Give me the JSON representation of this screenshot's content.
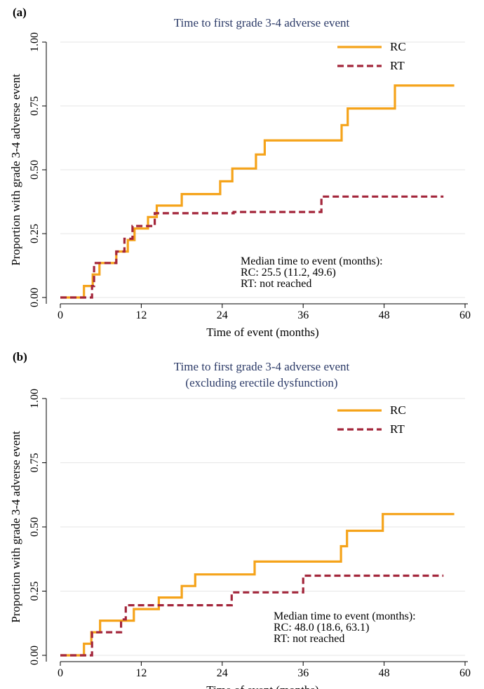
{
  "chart_data": [
    {
      "type": "line",
      "panel_label": "(a)",
      "title_lines": [
        "Time to first grade 3-4 adverse event"
      ],
      "xlabel": "Time of event (months)",
      "ylabel": "Proportion with grade 3-4 adverse event",
      "xlim": [
        0,
        60
      ],
      "ylim": [
        0,
        1
      ],
      "x_ticks": [
        0,
        12,
        24,
        36,
        48,
        60
      ],
      "y_ticks": [
        "0.00",
        "0.25",
        "0.50",
        "0.75",
        "1.00"
      ],
      "grid": true,
      "legend_position": "top-right",
      "series": [
        {
          "name": "RC",
          "color": "#f5a31a",
          "style": "solid",
          "x": [
            0,
            3.5,
            3.5,
            4.8,
            4.8,
            5.8,
            5.8,
            8.3,
            8.3,
            10.0,
            10.0,
            11.0,
            11.0,
            13.0,
            13.0,
            14.3,
            14.3,
            18.0,
            18.0,
            23.7,
            23.7,
            25.5,
            25.5,
            29.0,
            29.0,
            30.3,
            30.3,
            41.7,
            41.7,
            42.6,
            42.6,
            49.6,
            49.6,
            58.4
          ],
          "y": [
            0,
            0,
            0.045,
            0.045,
            0.09,
            0.09,
            0.135,
            0.135,
            0.18,
            0.18,
            0.225,
            0.225,
            0.27,
            0.27,
            0.315,
            0.315,
            0.36,
            0.36,
            0.405,
            0.405,
            0.455,
            0.455,
            0.505,
            0.505,
            0.56,
            0.56,
            0.615,
            0.615,
            0.675,
            0.675,
            0.74,
            0.74,
            0.83,
            0.83
          ]
        },
        {
          "name": "RT",
          "color": "#a3263b",
          "style": "dashed",
          "x": [
            0,
            4.7,
            4.7,
            5.0,
            5.0,
            8.3,
            8.3,
            9.5,
            9.5,
            10.7,
            10.7,
            14.0,
            14.0,
            25.7,
            25.7,
            38.7,
            38.7,
            56.8
          ],
          "y": [
            0,
            0,
            0.045,
            0.045,
            0.135,
            0.135,
            0.18,
            0.18,
            0.23,
            0.23,
            0.28,
            0.28,
            0.33,
            0.33,
            0.335,
            0.335,
            0.395,
            0.395
          ]
        }
      ],
      "annotation_lines": [
        "Median time to event (months):",
        "RC: 25.5 (11.2, 49.6)",
        "RT: not reached"
      ]
    },
    {
      "type": "line",
      "panel_label": "(b)",
      "title_lines": [
        "Time to first grade 3-4 adverse event",
        "(excluding erectile dysfunction)"
      ],
      "xlabel": "Time of event (months)",
      "ylabel": "Proportion with grade 3-4 adverse event",
      "xlim": [
        0,
        60
      ],
      "ylim": [
        0,
        1
      ],
      "x_ticks": [
        0,
        12,
        24,
        36,
        48,
        60
      ],
      "y_ticks": [
        "0.00",
        "0.25",
        "0.50",
        "0.75",
        "1.00"
      ],
      "grid": true,
      "legend_position": "top-right",
      "series": [
        {
          "name": "RC",
          "color": "#f5a31a",
          "style": "solid",
          "x": [
            0,
            3.5,
            3.5,
            4.6,
            4.6,
            5.9,
            5.9,
            10.9,
            10.9,
            14.6,
            14.6,
            18.0,
            18.0,
            20.0,
            20.0,
            28.8,
            28.8,
            41.6,
            41.6,
            42.5,
            42.5,
            47.8,
            47.8,
            58.4
          ],
          "y": [
            0,
            0,
            0.045,
            0.045,
            0.09,
            0.09,
            0.135,
            0.135,
            0.18,
            0.18,
            0.225,
            0.225,
            0.27,
            0.27,
            0.315,
            0.315,
            0.365,
            0.365,
            0.425,
            0.425,
            0.485,
            0.485,
            0.55,
            0.55
          ]
        },
        {
          "name": "RT",
          "color": "#a3263b",
          "style": "dashed",
          "x": [
            0,
            4.7,
            4.7,
            9.0,
            9.0,
            9.7,
            9.7,
            25.4,
            25.4,
            36.0,
            36.0,
            56.8
          ],
          "y": [
            0,
            0,
            0.09,
            0.09,
            0.14,
            0.14,
            0.195,
            0.195,
            0.245,
            0.245,
            0.31,
            0.31
          ]
        }
      ],
      "annotation_lines": [
        "Median time to event (months):",
        "RC: 48.0 (18.6, 63.1)",
        "RT: not reached"
      ]
    }
  ]
}
